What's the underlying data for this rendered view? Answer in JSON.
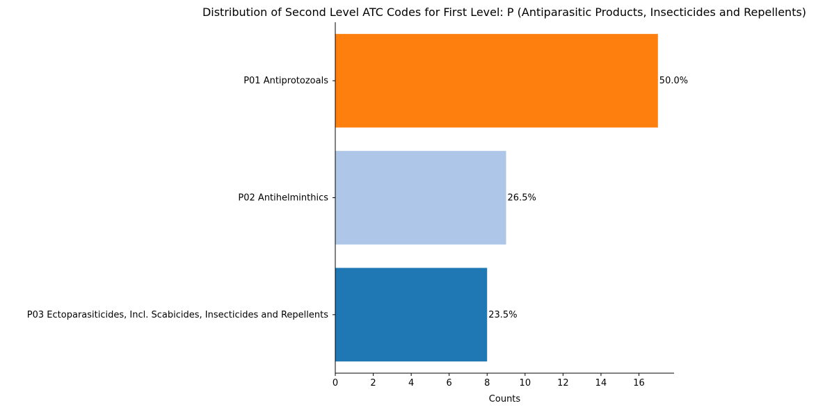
{
  "chart_data": {
    "type": "bar",
    "orientation": "horizontal",
    "title": "Distribution of Second Level ATC Codes for First Level: P (Antiparasitic Products, Insecticides and Repellents)",
    "xlabel": "Counts",
    "ylabel": "",
    "xlim": [
      0,
      17.85
    ],
    "xticks": [
      "0",
      "2",
      "4",
      "6",
      "8",
      "10",
      "12",
      "14",
      "16"
    ],
    "grid": false,
    "categories": [
      "P01 Antiprotozoals",
      "P02 Antihelminthics",
      "P03 Ectoparasiticides, Incl. Scabicides, Insecticides and Repellents"
    ],
    "values": [
      17,
      9,
      8
    ],
    "percent_labels": [
      "50.0%",
      "26.5%",
      "23.5%"
    ],
    "colors": [
      "#ff7f0e",
      "#aec7e8",
      "#1f77b4"
    ]
  }
}
